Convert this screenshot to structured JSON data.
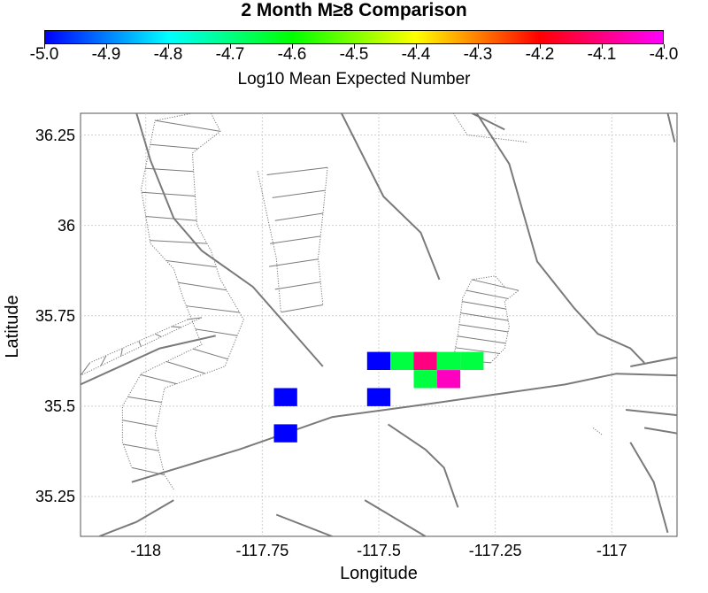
{
  "title": "2 Month M≥8 Comparison",
  "colorbar": {
    "title": "Log10 Mean Expected Number",
    "ticks": [
      "-5.0",
      "-4.9",
      "-4.8",
      "-4.7",
      "-4.6",
      "-4.5",
      "-4.4",
      "-4.3",
      "-4.2",
      "-4.1",
      "-4.0"
    ],
    "range": [
      -5.0,
      -4.0
    ],
    "stops": [
      "#0000ff",
      "#00ffff",
      "#00ff00",
      "#ffff00",
      "#ff0000",
      "#ff00ff"
    ]
  },
  "axes": {
    "xlabel": "Longitude",
    "ylabel": "Latitude",
    "xticks": [
      {
        "value": -118,
        "label": "-118"
      },
      {
        "value": -117.75,
        "label": "-117.75"
      },
      {
        "value": -117.5,
        "label": "-117.5"
      },
      {
        "value": -117.25,
        "label": "-117.25"
      },
      {
        "value": -117,
        "label": "-117"
      }
    ],
    "yticks": [
      {
        "value": 36.25,
        "label": "36.25"
      },
      {
        "value": 36,
        "label": "36"
      },
      {
        "value": 35.75,
        "label": "35.75"
      },
      {
        "value": 35.5,
        "label": "35.5"
      },
      {
        "value": 35.25,
        "label": "35.25"
      }
    ],
    "xlim": [
      -118.14,
      -116.86
    ],
    "ylim": [
      35.14,
      36.31
    ],
    "grid": true
  },
  "chart_data": {
    "type": "heatmap",
    "cell_size_deg": 0.05,
    "cells": [
      {
        "lon": -117.7,
        "lat": 35.525,
        "value": -5.0,
        "color": "#0000ff"
      },
      {
        "lon": -117.7,
        "lat": 35.425,
        "value": -5.0,
        "color": "#0000ff"
      },
      {
        "lon": -117.5,
        "lat": 35.525,
        "value": -5.0,
        "color": "#0000ff"
      },
      {
        "lon": -117.5,
        "lat": 35.625,
        "value": -5.0,
        "color": "#0000ff"
      },
      {
        "lon": -117.45,
        "lat": 35.625,
        "value": -4.7,
        "color": "#00ff40"
      },
      {
        "lon": -117.4,
        "lat": 35.625,
        "value": -4.1,
        "color": "#ff0080"
      },
      {
        "lon": -117.35,
        "lat": 35.625,
        "value": -4.7,
        "color": "#00ff40"
      },
      {
        "lon": -117.3,
        "lat": 35.625,
        "value": -4.7,
        "color": "#00ff40"
      },
      {
        "lon": -117.4,
        "lat": 35.575,
        "value": -4.7,
        "color": "#00ff40"
      },
      {
        "lon": -117.35,
        "lat": 35.575,
        "value": -4.05,
        "color": "#ff00c0"
      }
    ],
    "faults_solid": [
      [
        [
          -118.14,
          35.56
        ],
        [
          -117.97,
          35.66
        ],
        [
          -117.85,
          35.695
        ]
      ],
      [
        [
          -118.03,
          35.29
        ],
        [
          -117.8,
          35.38
        ],
        [
          -117.6,
          35.47
        ],
        [
          -117.4,
          35.505
        ],
        [
          -117.1,
          35.56
        ],
        [
          -116.99,
          35.59
        ],
        [
          -116.86,
          35.585
        ]
      ],
      [
        [
          -118.02,
          36.31
        ],
        [
          -117.99,
          36.18
        ],
        [
          -117.94,
          36.02
        ],
        [
          -117.88,
          35.93
        ],
        [
          -117.77,
          35.83
        ],
        [
          -117.62,
          35.61
        ]
      ],
      [
        [
          -117.58,
          36.31
        ],
        [
          -117.49,
          36.08
        ],
        [
          -117.41,
          35.98
        ],
        [
          -117.37,
          35.85
        ]
      ],
      [
        [
          -117.29,
          36.31
        ],
        [
          -117.22,
          36.17
        ],
        [
          -117.16,
          35.9
        ],
        [
          -117.08,
          35.77
        ],
        [
          -117.03,
          35.7
        ],
        [
          -116.96,
          35.66
        ],
        [
          -116.93,
          35.62
        ]
      ],
      [
        [
          -117.3,
          36.31
        ],
        [
          -117.23,
          36.265
        ]
      ],
      [
        [
          -116.88,
          36.31
        ],
        [
          -116.865,
          36.23
        ]
      ],
      [
        [
          -117.48,
          35.45
        ],
        [
          -117.4,
          35.38
        ],
        [
          -117.36,
          35.33
        ],
        [
          -117.33,
          35.22
        ]
      ],
      [
        [
          -117.72,
          35.2
        ],
        [
          -117.6,
          35.14
        ]
      ],
      [
        [
          -117.53,
          35.24
        ],
        [
          -117.4,
          35.14
        ]
      ],
      [
        [
          -118.1,
          35.14
        ],
        [
          -118.02,
          35.18
        ],
        [
          -117.94,
          35.24
        ]
      ],
      [
        [
          -116.97,
          35.49
        ],
        [
          -116.86,
          35.475
        ]
      ],
      [
        [
          -116.93,
          35.44
        ],
        [
          -116.86,
          35.425
        ]
      ],
      [
        [
          -116.96,
          35.4
        ],
        [
          -116.91,
          35.29
        ],
        [
          -116.88,
          35.15
        ]
      ],
      [
        [
          -116.96,
          35.61
        ],
        [
          -116.86,
          35.635
        ]
      ]
    ],
    "faults_dotted": [
      [
        [
          -117.88,
          35.745
        ],
        [
          -118.14,
          35.585
        ]
      ],
      [
        [
          -117.91,
          35.74
        ],
        [
          -118.12,
          35.62
        ]
      ],
      [
        [
          -117.86,
          36.31
        ],
        [
          -117.84,
          36.26
        ],
        [
          -117.9,
          36.2
        ],
        [
          -117.89,
          36.0
        ],
        [
          -117.86,
          35.93
        ],
        [
          -117.84,
          35.85
        ],
        [
          -117.79,
          35.74
        ],
        [
          -117.83,
          35.61
        ],
        [
          -117.96,
          35.55
        ],
        [
          -117.98,
          35.42
        ],
        [
          -117.96,
          35.31
        ],
        [
          -117.94,
          35.27
        ]
      ],
      [
        [
          -117.9,
          36.31
        ],
        [
          -117.98,
          36.29
        ],
        [
          -118.01,
          36.1
        ],
        [
          -117.99,
          35.95
        ],
        [
          -117.94,
          35.88
        ],
        [
          -117.92,
          35.8
        ],
        [
          -117.88,
          35.67
        ],
        [
          -118.01,
          35.59
        ],
        [
          -118.05,
          35.5
        ],
        [
          -118.05,
          35.4
        ],
        [
          -118.03,
          35.33
        ]
      ],
      [
        [
          -117.76,
          36.15
        ],
        [
          -117.74,
          36.03
        ],
        [
          -117.72,
          35.91
        ],
        [
          -117.71,
          35.76
        ]
      ],
      [
        [
          -117.61,
          36.16
        ],
        [
          -117.62,
          36.03
        ],
        [
          -117.63,
          35.91
        ],
        [
          -117.62,
          35.78
        ]
      ],
      [
        [
          -117.34,
          35.63
        ],
        [
          -117.33,
          35.7
        ],
        [
          -117.32,
          35.8
        ],
        [
          -117.3,
          35.85
        ],
        [
          -117.25,
          35.86
        ],
        [
          -117.23,
          35.83
        ]
      ],
      [
        [
          -117.26,
          35.62
        ],
        [
          -117.23,
          35.66
        ],
        [
          -117.22,
          35.72
        ],
        [
          -117.23,
          35.79
        ],
        [
          -117.2,
          35.82
        ]
      ],
      [
        [
          -117.34,
          36.31
        ],
        [
          -117.31,
          36.25
        ],
        [
          -117.18,
          36.23
        ]
      ],
      [
        [
          -117.04,
          35.44
        ],
        [
          -117.02,
          35.42
        ]
      ]
    ],
    "fault_ladders": [
      {
        "left": [
          [
            -117.98,
            36.29
          ],
          [
            -118.01,
            36.1
          ],
          [
            -117.99,
            35.95
          ],
          [
            -117.94,
            35.88
          ],
          [
            -117.92,
            35.8
          ],
          [
            -117.88,
            35.67
          ],
          [
            -118.01,
            35.59
          ],
          [
            -118.05,
            35.5
          ],
          [
            -118.05,
            35.4
          ],
          [
            -118.03,
            35.33
          ]
        ],
        "right": [
          [
            -117.84,
            36.26
          ],
          [
            -117.9,
            36.2
          ],
          [
            -117.89,
            36.0
          ],
          [
            -117.86,
            35.93
          ],
          [
            -117.84,
            35.85
          ],
          [
            -117.79,
            35.74
          ],
          [
            -117.83,
            35.61
          ],
          [
            -117.96,
            35.55
          ],
          [
            -117.98,
            35.42
          ],
          [
            -117.96,
            35.31
          ]
        ],
        "rungs": 16
      },
      {
        "left": [
          [
            -117.74,
            36.14
          ],
          [
            -117.72,
            36.03
          ],
          [
            -117.74,
            35.91
          ],
          [
            -117.71,
            35.76
          ]
        ],
        "right": [
          [
            -117.61,
            36.16
          ],
          [
            -117.62,
            36.03
          ],
          [
            -117.63,
            35.91
          ],
          [
            -117.62,
            35.78
          ]
        ],
        "rungs": 6
      },
      {
        "left": [
          [
            -117.34,
            35.63
          ],
          [
            -117.33,
            35.7
          ],
          [
            -117.32,
            35.8
          ],
          [
            -117.3,
            35.85
          ]
        ],
        "right": [
          [
            -117.26,
            35.62
          ],
          [
            -117.23,
            35.66
          ],
          [
            -117.22,
            35.72
          ],
          [
            -117.23,
            35.79
          ],
          [
            -117.2,
            35.82
          ]
        ],
        "rungs": 7
      },
      {
        "left": [
          [
            -118.12,
            35.62
          ],
          [
            -117.91,
            35.74
          ]
        ],
        "right": [
          [
            -118.14,
            35.585
          ],
          [
            -117.88,
            35.745
          ]
        ],
        "rungs": 6
      }
    ]
  }
}
